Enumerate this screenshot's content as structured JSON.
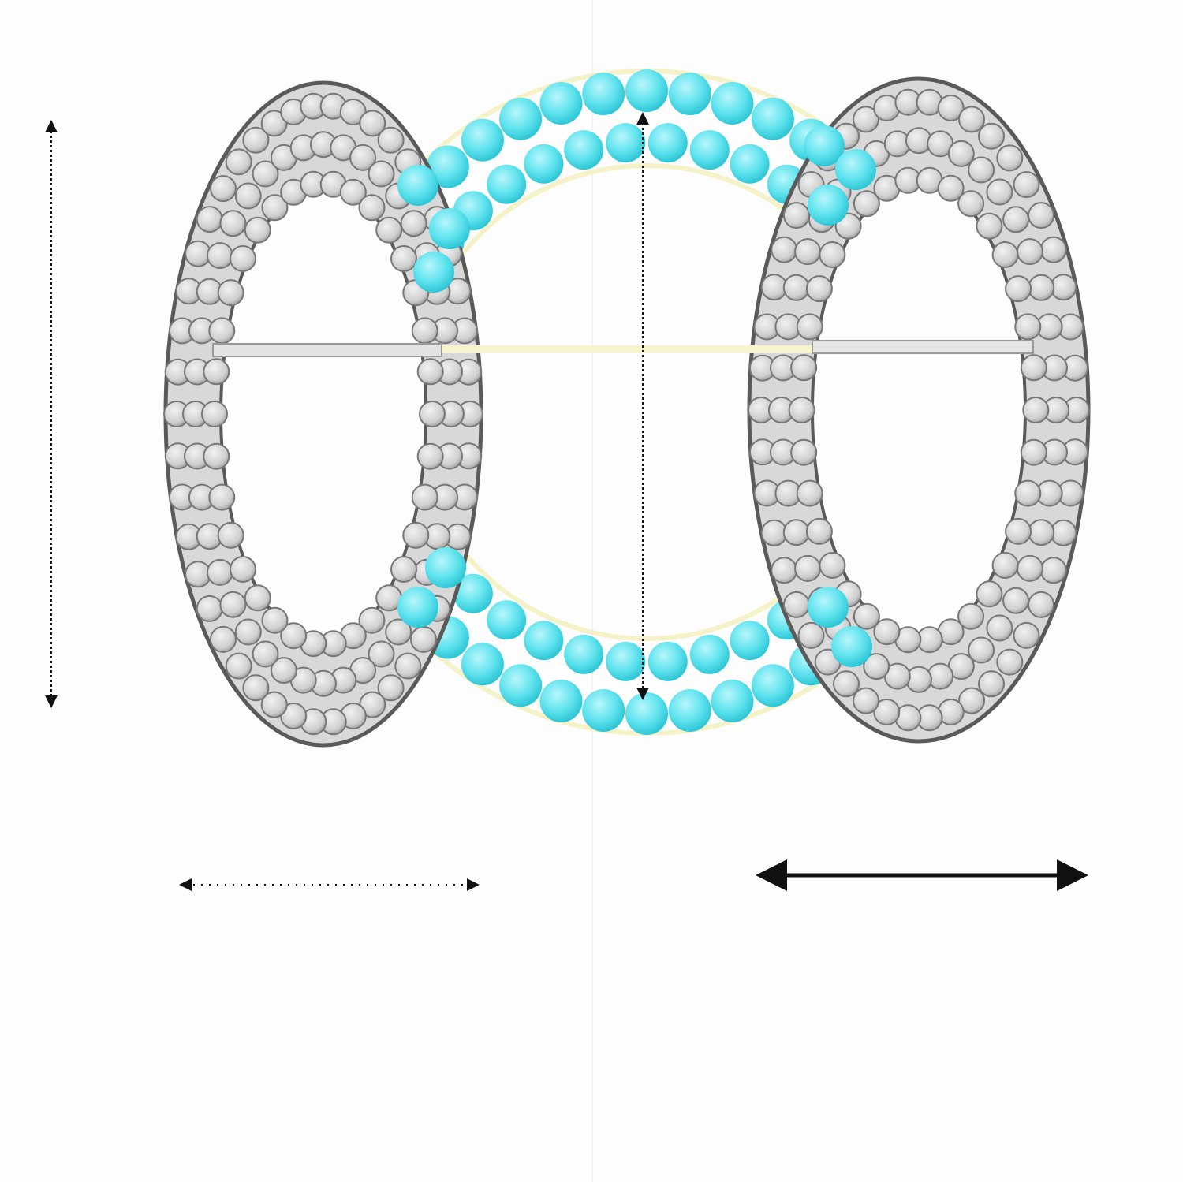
{
  "product": {
    "gem_color": "#5fe3ee",
    "metal_color": "#f2eeb8",
    "pave_color": "#cfcfcf",
    "pave_outline_color": "#6a6a6a"
  },
  "left": {
    "height_label": "",
    "width_label": "",
    "weight_label": "",
    "tip_line_1": "",
    "tip_line_2": ""
  },
  "right": {
    "height_label": "",
    "width_label": "",
    "weight_label": "",
    "tip_line_1": "",
    "tip_line_2": ""
  }
}
